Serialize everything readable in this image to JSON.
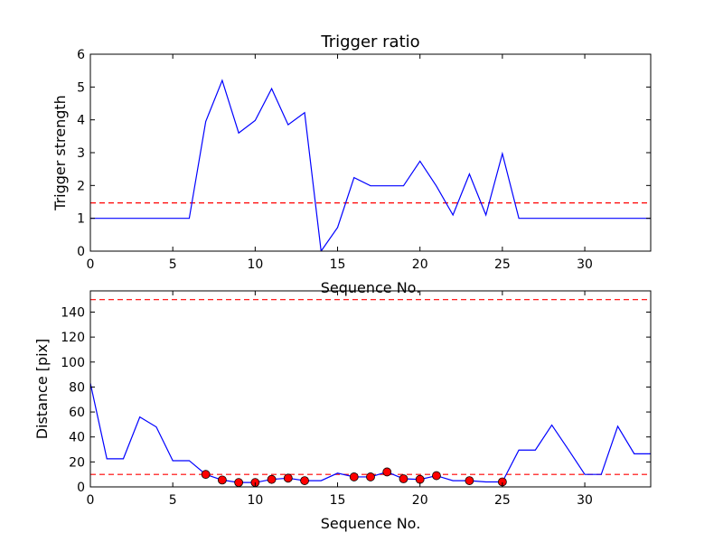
{
  "chart_data": [
    {
      "type": "line",
      "title": "Trigger ratio",
      "xlabel": "Sequence No.",
      "ylabel": "Trigger strength",
      "xlim": [
        0,
        34
      ],
      "ylim": [
        0,
        6
      ],
      "xticks": [
        0,
        5,
        10,
        15,
        20,
        25,
        30
      ],
      "yticks": [
        0,
        1,
        2,
        3,
        4,
        5,
        6
      ],
      "grid": false,
      "series": [
        {
          "color": "#0000ff",
          "style": "solid",
          "x": [
            0,
            1,
            2,
            3,
            4,
            5,
            6,
            7,
            8,
            9,
            10,
            11,
            12,
            13,
            14,
            15,
            16,
            17,
            18,
            19,
            20,
            21,
            22,
            23,
            24,
            25,
            26,
            27,
            28,
            29,
            30,
            31,
            32,
            33,
            34
          ],
          "y": [
            1,
            1,
            1,
            1,
            1,
            1,
            1,
            3.95,
            5.2,
            3.6,
            3.98,
            4.95,
            3.85,
            4.22,
            0,
            0.72,
            2.24,
            1.99,
            1.99,
            1.99,
            2.74,
            1.98,
            1.1,
            2.35,
            1.1,
            2.97,
            1,
            1,
            1,
            1,
            1,
            1,
            1,
            1,
            1
          ]
        }
      ],
      "hlines": [
        {
          "y": 1.47,
          "color": "#ff0000",
          "style": "dashed"
        }
      ]
    },
    {
      "type": "line",
      "title": "",
      "xlabel": "Sequence No.",
      "ylabel": "Distance [pix]",
      "xlim": [
        0,
        34
      ],
      "ylim": [
        0,
        157
      ],
      "xticks": [
        0,
        5,
        10,
        15,
        20,
        25,
        30
      ],
      "yticks": [
        0,
        20,
        40,
        60,
        80,
        100,
        120,
        140
      ],
      "grid": false,
      "series": [
        {
          "color": "#0000ff",
          "style": "solid",
          "x": [
            0,
            1,
            2,
            3,
            4,
            5,
            6,
            7,
            8,
            9,
            10,
            11,
            12,
            13,
            14,
            15,
            16,
            17,
            18,
            19,
            20,
            21,
            22,
            23,
            24,
            25,
            26,
            27,
            28,
            29,
            30,
            31,
            32,
            33,
            34
          ],
          "y": [
            83,
            22.5,
            22.5,
            56,
            48,
            21,
            21,
            10,
            5.5,
            3.5,
            3.5,
            6,
            7,
            5,
            5,
            11,
            8,
            8,
            12,
            6.5,
            6,
            9,
            5,
            5,
            4,
            4,
            29.5,
            29.5,
            49.5,
            30,
            10,
            10,
            48.5,
            26.5,
            26.5
          ]
        },
        {
          "color": "#ff0000",
          "style": "markers",
          "x": [
            7,
            8,
            9,
            10,
            11,
            12,
            13,
            16,
            17,
            18,
            19,
            20,
            21,
            23,
            25
          ],
          "y": [
            10,
            5.5,
            3.5,
            3.5,
            6,
            7,
            5,
            8,
            8,
            12,
            6.5,
            6,
            9,
            5,
            4
          ]
        }
      ],
      "hlines": [
        {
          "y": 150,
          "color": "#ff0000",
          "style": "dashed"
        },
        {
          "y": 10,
          "color": "#ff0000",
          "style": "dashed"
        }
      ]
    }
  ]
}
